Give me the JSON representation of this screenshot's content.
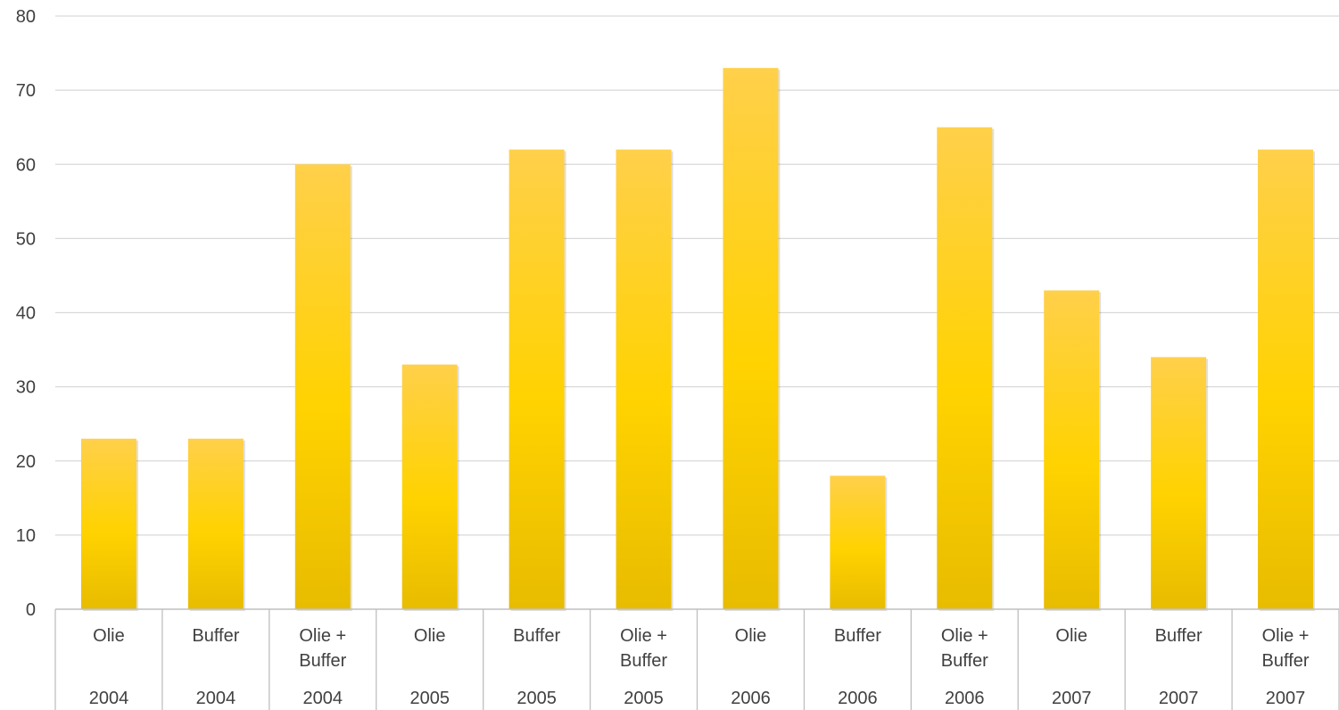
{
  "chart_data": {
    "type": "bar",
    "title": "",
    "xlabel": "",
    "ylabel": "",
    "categories": [
      {
        "label": [
          "Olie"
        ],
        "year": "2004"
      },
      {
        "label": [
          "Buffer"
        ],
        "year": "2004"
      },
      {
        "label": [
          "Olie +",
          "Buffer"
        ],
        "year": "2004"
      },
      {
        "label": [
          "Olie"
        ],
        "year": "2005"
      },
      {
        "label": [
          "Buffer"
        ],
        "year": "2005"
      },
      {
        "label": [
          "Olie +",
          "Buffer"
        ],
        "year": "2005"
      },
      {
        "label": [
          "Olie"
        ],
        "year": "2006"
      },
      {
        "label": [
          "Buffer"
        ],
        "year": "2006"
      },
      {
        "label": [
          "Olie +",
          "Buffer"
        ],
        "year": "2006"
      },
      {
        "label": [
          "Olie"
        ],
        "year": "2007"
      },
      {
        "label": [
          "Buffer"
        ],
        "year": "2007"
      },
      {
        "label": [
          "Olie +",
          "Buffer"
        ],
        "year": "2007"
      }
    ],
    "values": [
      23,
      23,
      60,
      33,
      62,
      62,
      73,
      18,
      65,
      43,
      34,
      62
    ],
    "ylim": [
      0,
      80
    ],
    "yticks": [
      "0",
      "10",
      "20",
      "30",
      "40",
      "50",
      "60",
      "70",
      "80"
    ],
    "grid": true,
    "legend": "none",
    "colors": {
      "bar_light": "#ffd04a",
      "bar_mid": "#ffd200",
      "bar_dark": "#e8bc00",
      "grid": "#d9d9d9",
      "axis": "#bfbfbf",
      "text": "#404040"
    }
  }
}
